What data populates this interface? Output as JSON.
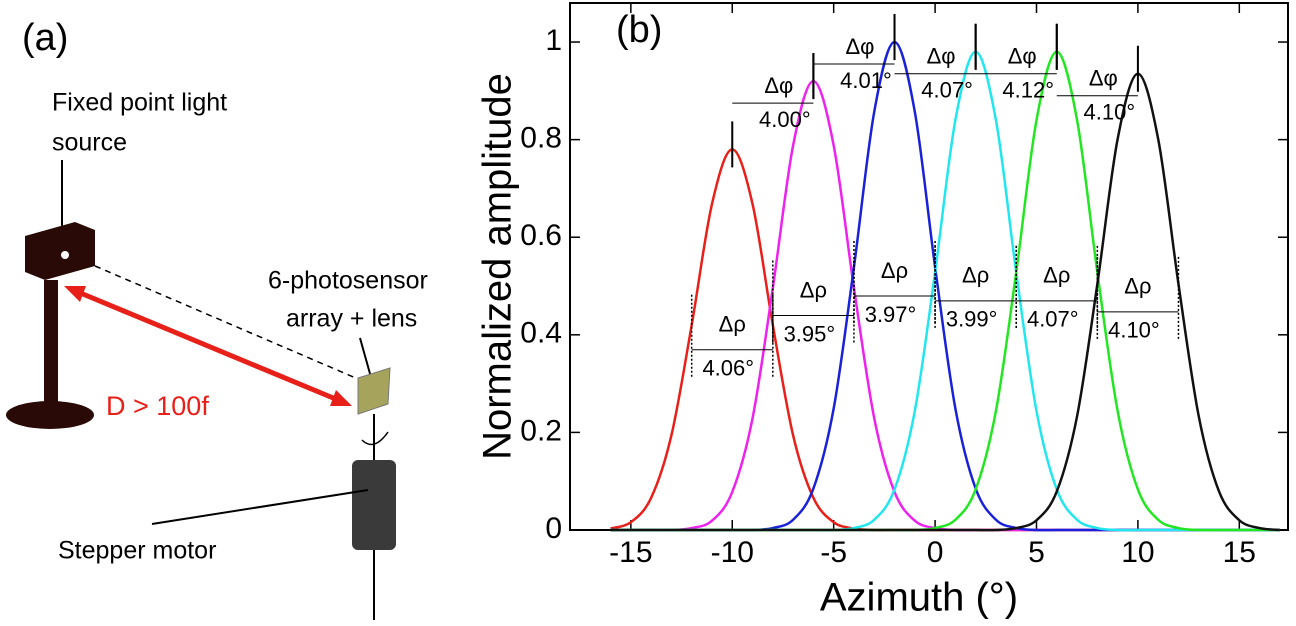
{
  "diagram": {
    "label": "(a)",
    "light_source": [
      "Fixed point light",
      "source"
    ],
    "sensor": [
      "6-photosensor",
      "array + lens"
    ],
    "distance": "D > 100f",
    "motor": "Stepper motor"
  },
  "chart_data": {
    "type": "line",
    "panel_label": "(b)",
    "x_label": "Azimuth (°)",
    "y_label": "Normalized amplitude",
    "xlim": [
      -18,
      17.4
    ],
    "ylim": [
      0,
      1.08
    ],
    "xticks": [
      -15,
      -10,
      -5,
      0,
      5,
      10,
      15
    ],
    "yticks": [
      0,
      0.2,
      0.4,
      0.6,
      0.8,
      1
    ],
    "x": [
      -16,
      -15,
      -14,
      -13,
      -12,
      -11,
      -10,
      -9,
      -8,
      -7,
      -6,
      -5,
      -4,
      -3,
      -2,
      -1,
      0,
      1,
      2,
      3,
      4,
      5,
      6,
      7,
      8,
      9,
      10,
      11,
      12,
      13,
      14,
      15,
      16,
      17
    ],
    "series": [
      {
        "color": "#e8201a",
        "values": [
          0.003,
          0.016,
          0.066,
          0.194,
          0.42,
          0.668,
          0.78,
          0.668,
          0.42,
          0.194,
          0.066,
          0.016,
          0.003,
          0,
          0,
          0,
          0,
          0,
          0,
          0,
          0,
          0,
          0,
          0,
          0,
          0,
          0,
          0,
          0,
          0,
          0,
          0,
          0,
          0
        ]
      },
      {
        "color": "#ee22ee",
        "values": [
          0,
          0,
          0,
          0,
          0.004,
          0.019,
          0.078,
          0.229,
          0.496,
          0.788,
          0.92,
          0.788,
          0.496,
          0.229,
          0.078,
          0.019,
          0.004,
          0,
          0,
          0,
          0,
          0,
          0,
          0,
          0,
          0,
          0,
          0,
          0,
          0,
          0,
          0,
          0,
          0
        ]
      },
      {
        "color": "#1a22d8",
        "values": [
          0,
          0,
          0,
          0,
          0,
          0,
          0,
          0,
          0.004,
          0.021,
          0.085,
          0.249,
          0.539,
          0.857,
          1,
          0.857,
          0.539,
          0.249,
          0.085,
          0.021,
          0.004,
          0,
          0,
          0,
          0,
          0,
          0,
          0,
          0,
          0,
          0,
          0,
          0,
          0
        ]
      },
      {
        "color": "#22e6ee",
        "values": [
          0,
          0,
          0,
          0,
          0,
          0,
          0,
          0,
          0,
          0,
          0,
          0,
          0.004,
          0.021,
          0.083,
          0.244,
          0.528,
          0.84,
          0.98,
          0.84,
          0.528,
          0.244,
          0.083,
          0.021,
          0.004,
          0,
          0,
          0,
          0,
          0,
          0,
          0,
          0,
          0
        ]
      },
      {
        "color": "#22e622",
        "values": [
          0,
          0,
          0,
          0,
          0,
          0,
          0,
          0,
          0,
          0,
          0,
          0,
          0,
          0,
          0,
          0,
          0.004,
          0.021,
          0.083,
          0.244,
          0.528,
          0.84,
          0.98,
          0.84,
          0.528,
          0.244,
          0.083,
          0.021,
          0.004,
          0,
          0,
          0,
          0,
          0
        ]
      },
      {
        "color": "#111111",
        "values": [
          0,
          0,
          0,
          0,
          0,
          0,
          0,
          0,
          0,
          0,
          0,
          0,
          0,
          0,
          0,
          0,
          0,
          0,
          0,
          0,
          0.004,
          0.02,
          0.079,
          0.233,
          0.504,
          0.801,
          0.935,
          0.801,
          0.504,
          0.233,
          0.079,
          0.02,
          0.004,
          0
        ]
      }
    ],
    "delta_phi": {
      "symbol": "Δφ",
      "values": [
        "4.00°",
        "4.01°",
        "4.07°",
        "4.12°",
        "4.10°"
      ]
    },
    "delta_rho": {
      "symbol": "Δρ",
      "values": [
        "4.06°",
        "3.95°",
        "3.97°",
        "3.99°",
        "4.07°",
        "4.10°"
      ]
    }
  }
}
